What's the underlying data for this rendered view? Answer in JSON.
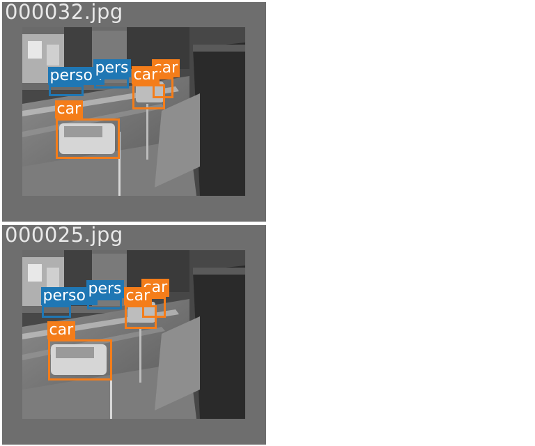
{
  "colors": {
    "car_class": "#f47d1a",
    "person_class": "#1f77b4",
    "tile_border": "#6e6e6e",
    "filename_text": "#e9e9e9"
  },
  "panels": [
    {
      "filename": "000032.jpg",
      "detections": [
        {
          "label": "person",
          "class": "person"
        },
        {
          "label": "pers",
          "class": "person"
        },
        {
          "label": "car",
          "class": "car"
        },
        {
          "label": "car",
          "class": "car"
        },
        {
          "label": "car",
          "class": "car"
        }
      ]
    },
    {
      "filename": "000025.jpg",
      "detections": [
        {
          "label": "person",
          "class": "person"
        },
        {
          "label": "pers",
          "class": "person"
        },
        {
          "label": "car",
          "class": "car"
        },
        {
          "label": "car",
          "class": "car"
        },
        {
          "label": "car",
          "class": "car"
        }
      ]
    }
  ]
}
